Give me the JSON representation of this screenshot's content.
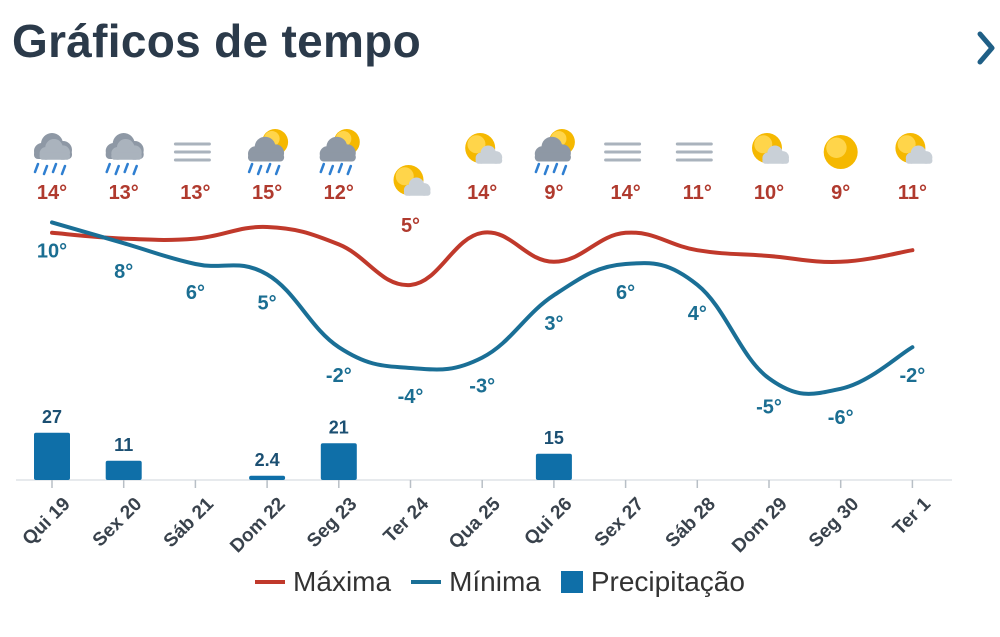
{
  "header": {
    "title": "Gráficos de tempo",
    "next_icon": "chevron-right-icon"
  },
  "colors": {
    "max": "#c0392b",
    "min": "#1a6f96",
    "precip": "#0f6fa8",
    "label_max": "#b03a2e",
    "label_min": "#1b6e92"
  },
  "chart_data": {
    "type": "line",
    "categories": [
      "Qui 19",
      "Sex 20",
      "Sáb 21",
      "Dom 22",
      "Seg 23",
      "Ter 24",
      "Qua 25",
      "Qui 26",
      "Sex 27",
      "Sáb 28",
      "Dom 29",
      "Seg 30",
      "Ter 1"
    ],
    "icons": [
      "rain-cloud-icon",
      "rain-cloud-icon",
      "fog-icon",
      "sun-rain-cloud-icon",
      "sun-rain-cloud-icon",
      "partly-cloudy-icon",
      "partly-cloudy-icon",
      "sun-rain-cloud-icon",
      "fog-icon",
      "fog-icon",
      "partly-cloudy-icon",
      "sun-icon",
      "partly-cloudy-icon"
    ],
    "series": [
      {
        "name": "Máxima",
        "values": [
          14,
          13,
          13,
          15,
          12,
          5,
          14,
          9,
          14,
          11,
          10,
          9,
          11
        ],
        "labels": [
          "14°",
          "13°",
          "13°",
          "15°",
          "12°",
          "5°",
          "14°",
          "9°",
          "14°",
          "11°",
          "10°",
          "9°",
          "11°"
        ]
      },
      {
        "name": "Mínima",
        "values": [
          10,
          8,
          6,
          5,
          -2,
          -4,
          -3,
          3,
          6,
          4,
          -5,
          -6,
          -2
        ],
        "labels": [
          "10°",
          "8°",
          "6°",
          "5°",
          "-2°",
          "-4°",
          "-3°",
          "3°",
          "6°",
          "4°",
          "-5°",
          "-6°",
          "-2°"
        ]
      },
      {
        "name": "Precipitação",
        "type": "bar",
        "values": [
          27,
          11,
          0,
          2.4,
          21,
          0,
          0,
          15,
          0,
          0,
          0,
          0,
          0
        ],
        "labels": [
          "27",
          "11",
          "",
          "2.4",
          "21",
          "",
          "",
          "15",
          "",
          "",
          "",
          "",
          ""
        ]
      }
    ],
    "title": "Gráficos de tempo",
    "grid": false,
    "legend": "bottom-center"
  }
}
